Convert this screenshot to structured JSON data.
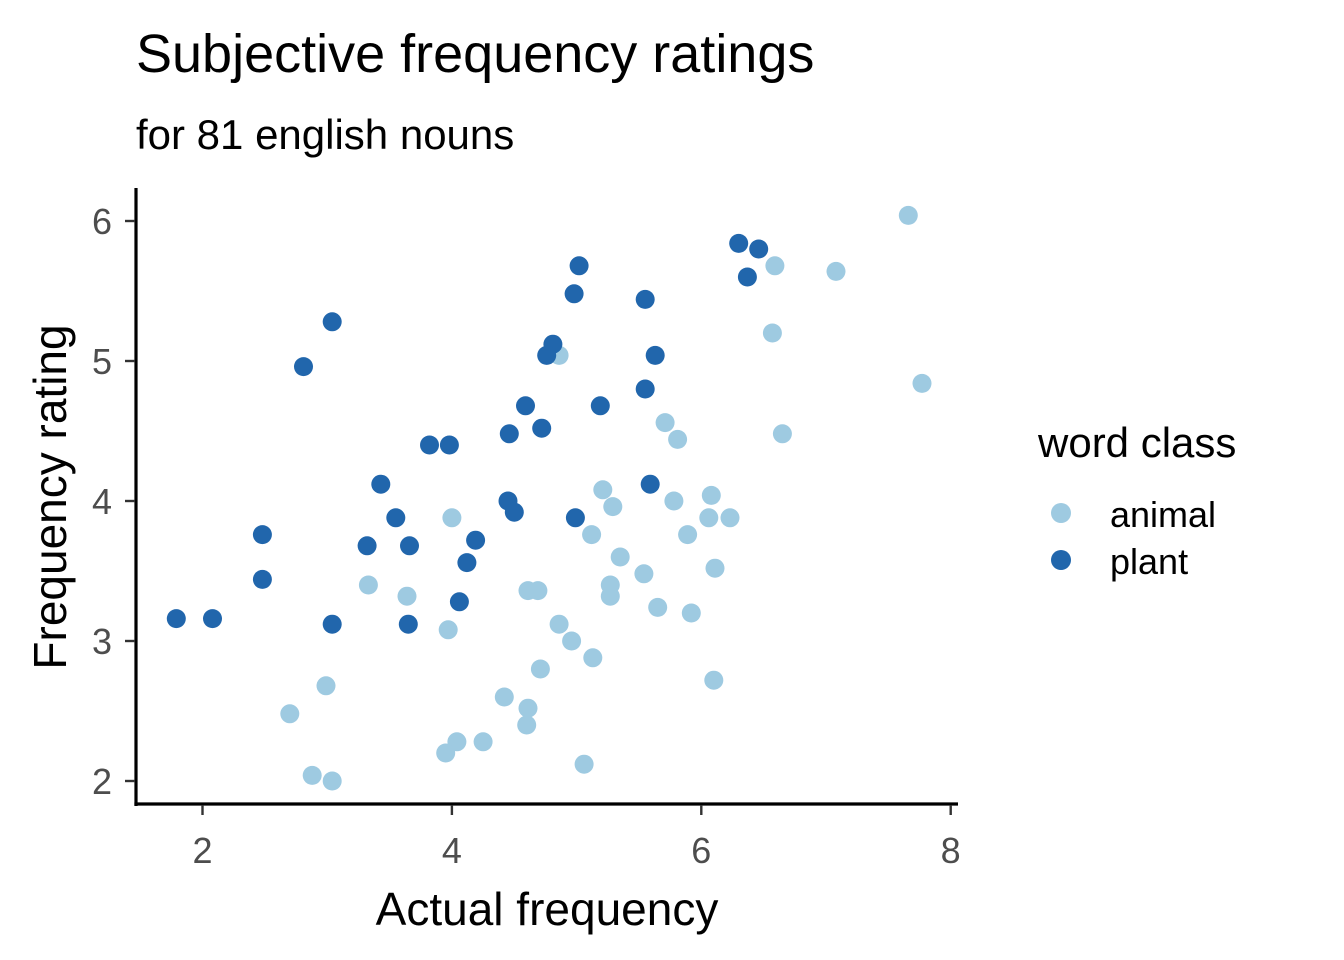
{
  "chart_data": {
    "type": "scatter",
    "title": "Subjective frequency ratings",
    "subtitle": "for 81 english nouns",
    "xlabel": "Actual frequency",
    "ylabel": "Frequency rating",
    "xlim": [
      1.5,
      8.0
    ],
    "ylim": [
      1.8,
      6.3
    ],
    "x_ticks": [
      2,
      4,
      6,
      8
    ],
    "y_ticks": [
      2,
      3,
      4,
      5,
      6
    ],
    "grid": false,
    "legend": {
      "title": "word class",
      "position": "right"
    },
    "series": [
      {
        "name": "animal",
        "color": "#9ecae1",
        "points": [
          [
            7.66,
            6.04
          ],
          [
            6.59,
            5.68
          ],
          [
            7.08,
            5.64
          ],
          [
            6.57,
            5.2
          ],
          [
            4.86,
            5.04
          ],
          [
            7.77,
            4.84
          ],
          [
            5.71,
            4.56
          ],
          [
            6.65,
            4.48
          ],
          [
            5.81,
            4.44
          ],
          [
            5.21,
            4.08
          ],
          [
            6.08,
            4.04
          ],
          [
            5.78,
            4.0
          ],
          [
            5.29,
            3.96
          ],
          [
            4.0,
            3.88
          ],
          [
            6.06,
            3.88
          ],
          [
            6.23,
            3.88
          ],
          [
            5.12,
            3.76
          ],
          [
            5.89,
            3.76
          ],
          [
            5.35,
            3.6
          ],
          [
            6.11,
            3.52
          ],
          [
            5.54,
            3.48
          ],
          [
            5.27,
            3.4
          ],
          [
            3.33,
            3.4
          ],
          [
            4.61,
            3.36
          ],
          [
            4.69,
            3.36
          ],
          [
            3.64,
            3.32
          ],
          [
            5.27,
            3.32
          ],
          [
            5.65,
            3.24
          ],
          [
            5.92,
            3.2
          ],
          [
            4.86,
            3.12
          ],
          [
            3.97,
            3.08
          ],
          [
            4.96,
            3.0
          ],
          [
            5.13,
            2.88
          ],
          [
            4.71,
            2.8
          ],
          [
            6.1,
            2.72
          ],
          [
            2.99,
            2.68
          ],
          [
            4.42,
            2.6
          ],
          [
            4.61,
            2.52
          ],
          [
            2.7,
            2.48
          ],
          [
            4.6,
            2.4
          ],
          [
            4.04,
            2.28
          ],
          [
            4.25,
            2.28
          ],
          [
            3.95,
            2.2
          ],
          [
            5.06,
            2.12
          ],
          [
            2.88,
            2.04
          ],
          [
            3.04,
            2.0
          ]
        ]
      },
      {
        "name": "plant",
        "color": "#2166ac",
        "points": [
          [
            6.3,
            5.84
          ],
          [
            6.46,
            5.8
          ],
          [
            5.02,
            5.68
          ],
          [
            6.37,
            5.6
          ],
          [
            4.98,
            5.48
          ],
          [
            5.55,
            5.44
          ],
          [
            3.04,
            5.28
          ],
          [
            4.81,
            5.12
          ],
          [
            4.76,
            5.04
          ],
          [
            5.63,
            5.04
          ],
          [
            2.81,
            4.96
          ],
          [
            5.55,
            4.8
          ],
          [
            4.59,
            4.68
          ],
          [
            5.19,
            4.68
          ],
          [
            4.72,
            4.52
          ],
          [
            4.46,
            4.48
          ],
          [
            3.82,
            4.4
          ],
          [
            3.98,
            4.4
          ],
          [
            3.43,
            4.12
          ],
          [
            5.59,
            4.12
          ],
          [
            4.45,
            4.0
          ],
          [
            4.5,
            3.92
          ],
          [
            3.55,
            3.88
          ],
          [
            4.99,
            3.88
          ],
          [
            2.48,
            3.76
          ],
          [
            4.19,
            3.72
          ],
          [
            3.32,
            3.68
          ],
          [
            3.66,
            3.68
          ],
          [
            4.12,
            3.56
          ],
          [
            2.48,
            3.44
          ],
          [
            4.06,
            3.28
          ],
          [
            1.79,
            3.16
          ],
          [
            2.08,
            3.16
          ],
          [
            3.04,
            3.12
          ],
          [
            3.65,
            3.12
          ]
        ]
      }
    ]
  }
}
